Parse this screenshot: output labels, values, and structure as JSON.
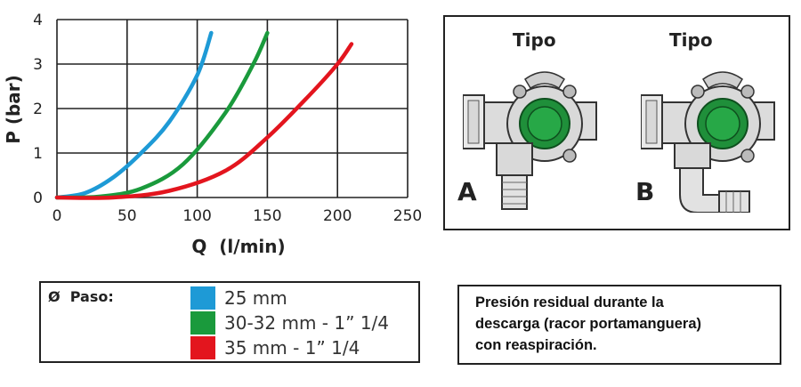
{
  "chart_data": {
    "type": "line",
    "xlabel": "Q  (l/min)",
    "ylabel": "P (bar)",
    "xlim": [
      0,
      250
    ],
    "ylim": [
      0,
      4
    ],
    "xticks": [
      "0",
      "50",
      "100",
      "150",
      "200",
      "250"
    ],
    "yticks": [
      "0",
      "1",
      "2",
      "3",
      "4"
    ],
    "grid": true,
    "series": [
      {
        "name": "25 mm",
        "color": "#1e9ad6",
        "points": [
          [
            0,
            0
          ],
          [
            20,
            0.1
          ],
          [
            40,
            0.45
          ],
          [
            60,
            1.0
          ],
          [
            80,
            1.7
          ],
          [
            100,
            2.75
          ],
          [
            110,
            3.7
          ]
        ]
      },
      {
        "name": "30-32 mm - 1” 1/4",
        "color": "#1a9a3c",
        "points": [
          [
            0,
            0
          ],
          [
            30,
            0.02
          ],
          [
            60,
            0.2
          ],
          [
            90,
            0.75
          ],
          [
            120,
            1.9
          ],
          [
            140,
            3.0
          ],
          [
            150,
            3.7
          ]
        ]
      },
      {
        "name": "35 mm - 1” 1/4",
        "color": "#e3151e",
        "points": [
          [
            0,
            0
          ],
          [
            40,
            0
          ],
          [
            80,
            0.15
          ],
          [
            120,
            0.6
          ],
          [
            150,
            1.35
          ],
          [
            180,
            2.3
          ],
          [
            200,
            3.0
          ],
          [
            210,
            3.45
          ]
        ]
      }
    ]
  },
  "valves": [
    {
      "title": "Tipo",
      "letter": "A",
      "icon": "valve-straight-outlet-icon"
    },
    {
      "title": "Tipo",
      "letter": "B",
      "icon": "valve-elbow-outlet-icon"
    }
  ],
  "legend": {
    "title": "Ø  Paso:",
    "items": [
      {
        "label": "25 mm",
        "color": "#1e9ad6"
      },
      {
        "label": "30-32 mm - 1” 1/4",
        "color": "#1a9a3c"
      },
      {
        "label": "35 mm - 1” 1/4",
        "color": "#e3151e"
      }
    ]
  },
  "note": {
    "lines": [
      "Presión residual durante la",
      "descarga (racor portamanguera)",
      "con reaspiración."
    ]
  }
}
